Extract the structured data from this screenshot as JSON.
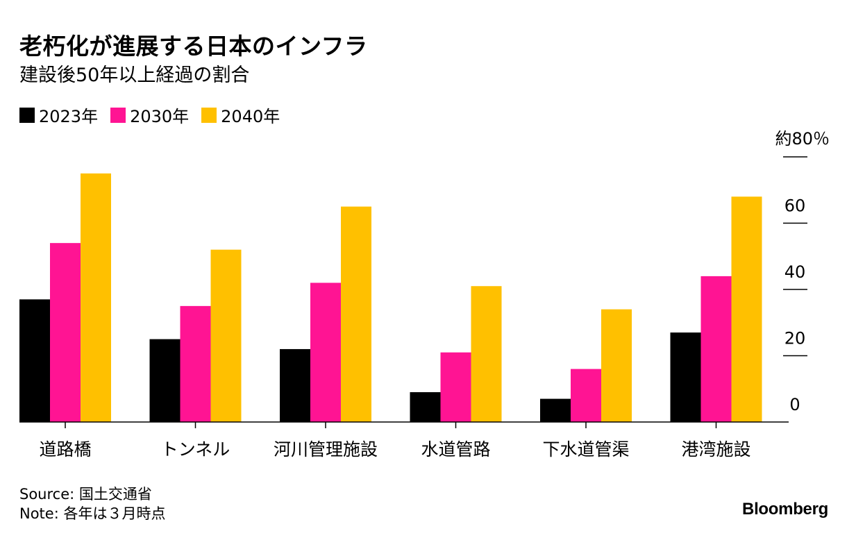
{
  "title": "老朽化が進展する日本のインフラ",
  "subtitle": "建設後50年以上経過の割合",
  "footer": {
    "source": "Source: 国土交通省",
    "note": "Note: 各年は３月時点"
  },
  "brand": "Bloomberg",
  "chart_data": {
    "type": "bar",
    "title": "老朽化が進展する日本のインフラ",
    "subtitle": "建設後50年以上経過の割合",
    "categories": [
      "道路橋",
      "トンネル",
      "河川管理施設",
      "水道管路",
      "下水道管渠",
      "港湾施設"
    ],
    "series": [
      {
        "name": "2023年",
        "color": "#000000",
        "values": [
          37,
          25,
          22,
          9,
          7,
          27
        ]
      },
      {
        "name": "2030年",
        "color": "#ff1493",
        "values": [
          54,
          35,
          42,
          21,
          16,
          44
        ]
      },
      {
        "name": "2040年",
        "color": "#ffc000",
        "values": [
          75,
          52,
          65,
          41,
          34,
          68
        ]
      }
    ],
    "yaxis": {
      "ticks": [
        0,
        20,
        40,
        60,
        80
      ],
      "tick_labels": [
        "0",
        "20",
        "40",
        "60",
        "約80％"
      ],
      "ylim": [
        0,
        80
      ],
      "position": "right"
    },
    "xlabel": "",
    "ylabel": "",
    "grid": false,
    "legend": "top-left"
  }
}
